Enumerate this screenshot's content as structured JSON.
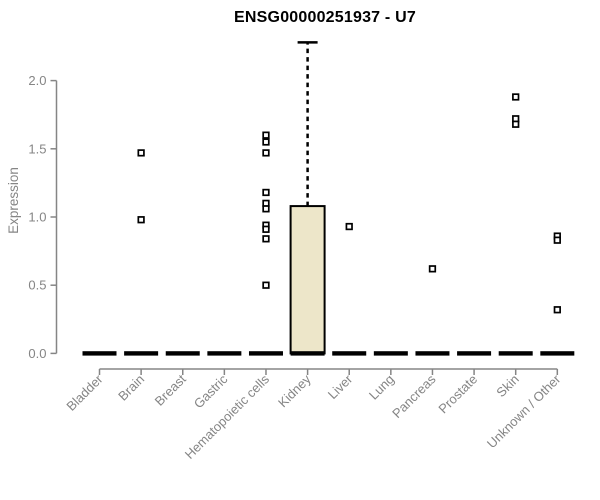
{
  "chart_data": {
    "type": "boxplot",
    "title": "ENSG00000251937 - U7",
    "ylabel": "Expression",
    "xlabel": "",
    "yticks": [
      0.0,
      0.5,
      1.0,
      1.5,
      2.0
    ],
    "ylim": [
      0,
      2.32
    ],
    "grid": "off",
    "legend": "none",
    "categories": [
      "Bladder",
      "Brain",
      "Breast",
      "Gastric",
      "Hematopoietic cells",
      "Kidney",
      "Liver",
      "Lung",
      "Pancreas",
      "Prostate",
      "Skin",
      "Unknown / Other"
    ],
    "boxes": [
      {
        "category": "Bladder",
        "q1": 0,
        "median": 0,
        "q3": 0,
        "whisker_low": 0,
        "whisker_high": 0,
        "outliers": []
      },
      {
        "category": "Brain",
        "q1": 0,
        "median": 0,
        "q3": 0,
        "whisker_low": 0,
        "whisker_high": 0,
        "outliers": [
          1.47,
          0.98
        ]
      },
      {
        "category": "Breast",
        "q1": 0,
        "median": 0,
        "q3": 0,
        "whisker_low": 0,
        "whisker_high": 0,
        "outliers": []
      },
      {
        "category": "Gastric",
        "q1": 0,
        "median": 0,
        "q3": 0,
        "whisker_low": 0,
        "whisker_high": 0,
        "outliers": []
      },
      {
        "category": "Hematopoietic cells",
        "q1": 0,
        "median": 0,
        "q3": 0,
        "whisker_low": 0,
        "whisker_high": 0,
        "outliers": [
          1.6,
          1.55,
          1.47,
          1.18,
          1.1,
          1.06,
          0.94,
          0.91,
          0.84,
          0.5
        ]
      },
      {
        "category": "Kidney",
        "q1": 0,
        "median": 0,
        "q3": 1.08,
        "whisker_low": 0,
        "whisker_high": 2.28,
        "outliers": []
      },
      {
        "category": "Liver",
        "q1": 0,
        "median": 0,
        "q3": 0,
        "whisker_low": 0,
        "whisker_high": 0,
        "outliers": [
          0.93
        ]
      },
      {
        "category": "Lung",
        "q1": 0,
        "median": 0,
        "q3": 0,
        "whisker_low": 0,
        "whisker_high": 0,
        "outliers": []
      },
      {
        "category": "Pancreas",
        "q1": 0,
        "median": 0,
        "q3": 0,
        "whisker_low": 0,
        "whisker_high": 0,
        "outliers": [
          0.62
        ]
      },
      {
        "category": "Prostate",
        "q1": 0,
        "median": 0,
        "q3": 0,
        "whisker_low": 0,
        "whisker_high": 0,
        "outliers": []
      },
      {
        "category": "Skin",
        "q1": 0,
        "median": 0,
        "q3": 0,
        "whisker_low": 0,
        "whisker_high": 0,
        "outliers": [
          1.88,
          1.72,
          1.68
        ]
      },
      {
        "category": "Unknown / Other",
        "q1": 0,
        "median": 0,
        "q3": 0,
        "whisker_low": 0,
        "whisker_high": 0,
        "outliers": [
          0.86,
          0.83,
          0.32
        ]
      }
    ],
    "colors": {
      "box_fill": "#EDE6C9",
      "box_border": "#000000",
      "median": "#000000",
      "whisker": "#000000",
      "outlier_stroke": "#000000",
      "outlier_fill": "#ffffff",
      "axis": "#858585",
      "tick_text": "#858585",
      "title_text": "#000000",
      "background": "#ffffff"
    },
    "marker": "open-square",
    "whisker_style": "dashed"
  }
}
